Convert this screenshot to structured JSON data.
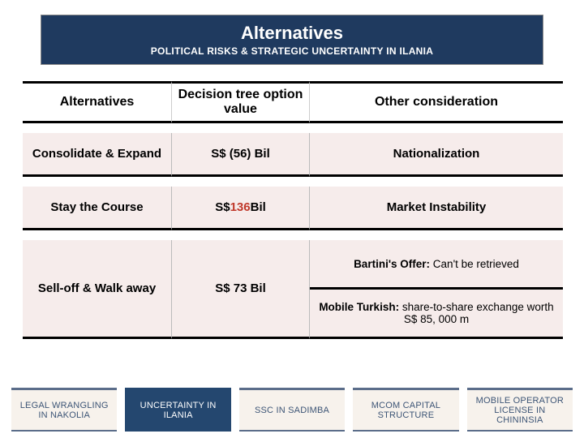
{
  "header": {
    "title": "Alternatives",
    "subtitle": "POLITICAL RISKS & STRATEGIC UNCERTAINTY IN ILANIA"
  },
  "table": {
    "columns": [
      "Alternatives",
      "Decision tree option value",
      "Other consideration"
    ],
    "rows": [
      {
        "alt": "Consolidate & Expand",
        "value": "S$ (56) Bil",
        "value_color": "#000000",
        "other": "Nationalization"
      },
      {
        "alt": "Stay the Course",
        "value_prefix": "S$ ",
        "value_num": "136",
        "value_suffix": " Bil",
        "value_color": "#c0392b",
        "other": "Market Instability"
      }
    ],
    "tall_row": {
      "alt": "Sell-off & Walk away",
      "value": "S$ 73 Bil",
      "others": [
        {
          "label": "Bartini's Offer:",
          "text": " Can't be retrieved"
        },
        {
          "label": "Mobile Turkish:",
          "text": " share-to-share exchange worth S$ 85, 000 m"
        }
      ]
    }
  },
  "footer": {
    "items": [
      {
        "label": "LEGAL WRANGLING IN NAKOLIA",
        "active": false
      },
      {
        "label": "UNCERTAINTY IN ILANIA",
        "active": true
      },
      {
        "label": "SSC IN SADIMBA",
        "active": false
      },
      {
        "label": "MCOM CAPITAL STRUCTURE",
        "active": false
      },
      {
        "label": "MOBILE OPERATOR LICENSE IN CHININSIA",
        "active": false
      }
    ]
  },
  "colors": {
    "header_bg": "#1f3a5f",
    "row_bg": "#f6eceb",
    "footer_inactive_bg": "#f7f2ec",
    "footer_active_bg": "#24476f",
    "footer_text": "#3d5576"
  }
}
